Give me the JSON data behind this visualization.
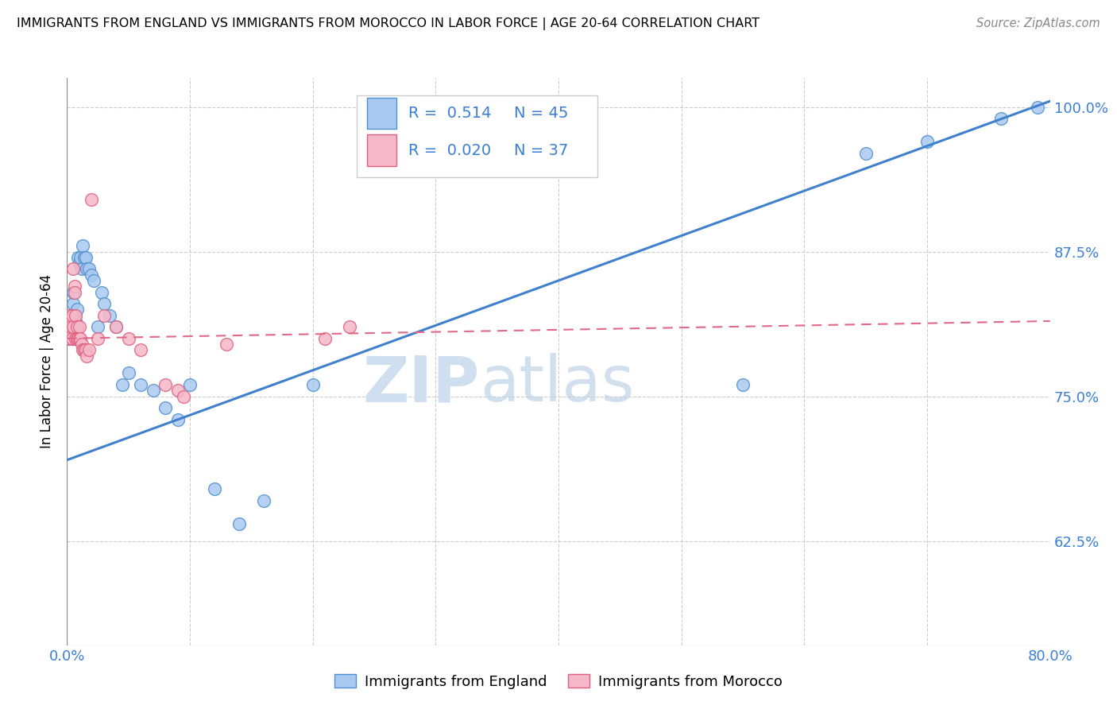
{
  "title": "IMMIGRANTS FROM ENGLAND VS IMMIGRANTS FROM MOROCCO IN LABOR FORCE | AGE 20-64 CORRELATION CHART",
  "source": "Source: ZipAtlas.com",
  "ylabel": "In Labor Force | Age 20-64",
  "x_min": 0.0,
  "x_max": 0.8,
  "y_min": 0.535,
  "y_max": 1.025,
  "y_ticks": [
    0.625,
    0.75,
    0.875,
    1.0
  ],
  "y_tick_labels": [
    "62.5%",
    "75.0%",
    "87.5%",
    "100.0%"
  ],
  "england_color": "#aac9f0",
  "morocco_color": "#f5b8c8",
  "england_edge_color": "#5090d0",
  "morocco_edge_color": "#e06080",
  "england_line_color": "#4080cc",
  "morocco_line_color": "#e06888",
  "legend_R_england": "R =  0.514",
  "legend_N_england": "N = 45",
  "legend_R_morocco": "R =  0.020",
  "legend_N_morocco": "N = 37",
  "legend_label_england": "Immigrants from England",
  "legend_label_morocco": "Immigrants from Morocco",
  "eng_line_x": [
    0.0,
    0.8
  ],
  "eng_line_y": [
    0.695,
    1.005
  ],
  "mor_line_x": [
    0.0,
    0.8
  ],
  "mor_line_y": [
    0.8,
    0.815
  ],
  "england_x": [
    0.001,
    0.002,
    0.002,
    0.003,
    0.003,
    0.004,
    0.004,
    0.005,
    0.005,
    0.006,
    0.007,
    0.008,
    0.008,
    0.009,
    0.01,
    0.011,
    0.012,
    0.013,
    0.014,
    0.015,
    0.016,
    0.018,
    0.02,
    0.022,
    0.025,
    0.028,
    0.03,
    0.035,
    0.04,
    0.045,
    0.05,
    0.06,
    0.07,
    0.08,
    0.09,
    0.1,
    0.12,
    0.14,
    0.16,
    0.2,
    0.55,
    0.65,
    0.7,
    0.76,
    0.79
  ],
  "england_y": [
    0.8,
    0.805,
    0.81,
    0.815,
    0.82,
    0.81,
    0.8,
    0.83,
    0.84,
    0.82,
    0.815,
    0.81,
    0.825,
    0.87,
    0.865,
    0.87,
    0.86,
    0.88,
    0.87,
    0.87,
    0.86,
    0.86,
    0.855,
    0.85,
    0.81,
    0.84,
    0.83,
    0.82,
    0.81,
    0.76,
    0.77,
    0.76,
    0.755,
    0.74,
    0.73,
    0.76,
    0.67,
    0.64,
    0.66,
    0.76,
    0.76,
    0.96,
    0.97,
    0.99,
    1.0
  ],
  "morocco_x": [
    0.001,
    0.002,
    0.002,
    0.003,
    0.003,
    0.004,
    0.004,
    0.005,
    0.005,
    0.006,
    0.006,
    0.007,
    0.007,
    0.008,
    0.008,
    0.009,
    0.01,
    0.01,
    0.011,
    0.012,
    0.013,
    0.014,
    0.015,
    0.016,
    0.018,
    0.02,
    0.025,
    0.03,
    0.04,
    0.05,
    0.06,
    0.08,
    0.09,
    0.095,
    0.13,
    0.21,
    0.23
  ],
  "morocco_y": [
    0.82,
    0.8,
    0.815,
    0.805,
    0.81,
    0.82,
    0.8,
    0.86,
    0.81,
    0.845,
    0.84,
    0.82,
    0.8,
    0.81,
    0.8,
    0.8,
    0.81,
    0.8,
    0.8,
    0.795,
    0.79,
    0.79,
    0.79,
    0.785,
    0.79,
    0.92,
    0.8,
    0.82,
    0.81,
    0.8,
    0.79,
    0.76,
    0.755,
    0.75,
    0.795,
    0.8,
    0.81
  ]
}
